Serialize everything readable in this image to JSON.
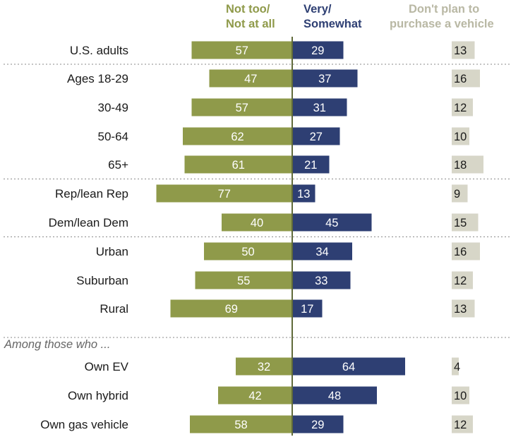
{
  "chart_data": {
    "type": "bar",
    "orientation": "horizontal-diverging",
    "title": "",
    "xlabel": "",
    "ylabel": "",
    "column_headers": {
      "negative": [
        "Not too/",
        "Not at all"
      ],
      "positive": [
        "Very/",
        "Somewhat"
      ],
      "side": [
        "Don't plan to",
        "purchase a vehicle"
      ]
    },
    "section_note": "Among those who ...",
    "categories": [
      "U.S. adults",
      "Ages 18-29",
      "30-49",
      "50-64",
      "65+",
      "Rep/lean Rep",
      "Dem/lean Dem",
      "Urban",
      "Suburban",
      "Rural",
      "Own EV",
      "Own hybrid",
      "Own gas vehicle"
    ],
    "series": [
      {
        "name": "Not too/Not at all",
        "color": "#8f9a4a",
        "values": [
          57,
          47,
          57,
          62,
          61,
          77,
          40,
          50,
          55,
          69,
          32,
          42,
          58
        ]
      },
      {
        "name": "Very/Somewhat",
        "color": "#2e3f73",
        "values": [
          29,
          37,
          31,
          27,
          21,
          13,
          45,
          34,
          33,
          17,
          64,
          48,
          29
        ]
      },
      {
        "name": "Don't plan to purchase a vehicle",
        "color": "#d7d6c8",
        "values": [
          13,
          16,
          12,
          10,
          18,
          9,
          15,
          16,
          12,
          13,
          4,
          10,
          12
        ]
      }
    ],
    "group_separators_after": [
      0,
      4,
      6,
      9
    ],
    "colors": {
      "negative": "#8f9a4a",
      "positive": "#2e3f73",
      "side": "#d7d6c8",
      "header_side": "#b9b8a4",
      "axis": "#606a3a"
    }
  }
}
